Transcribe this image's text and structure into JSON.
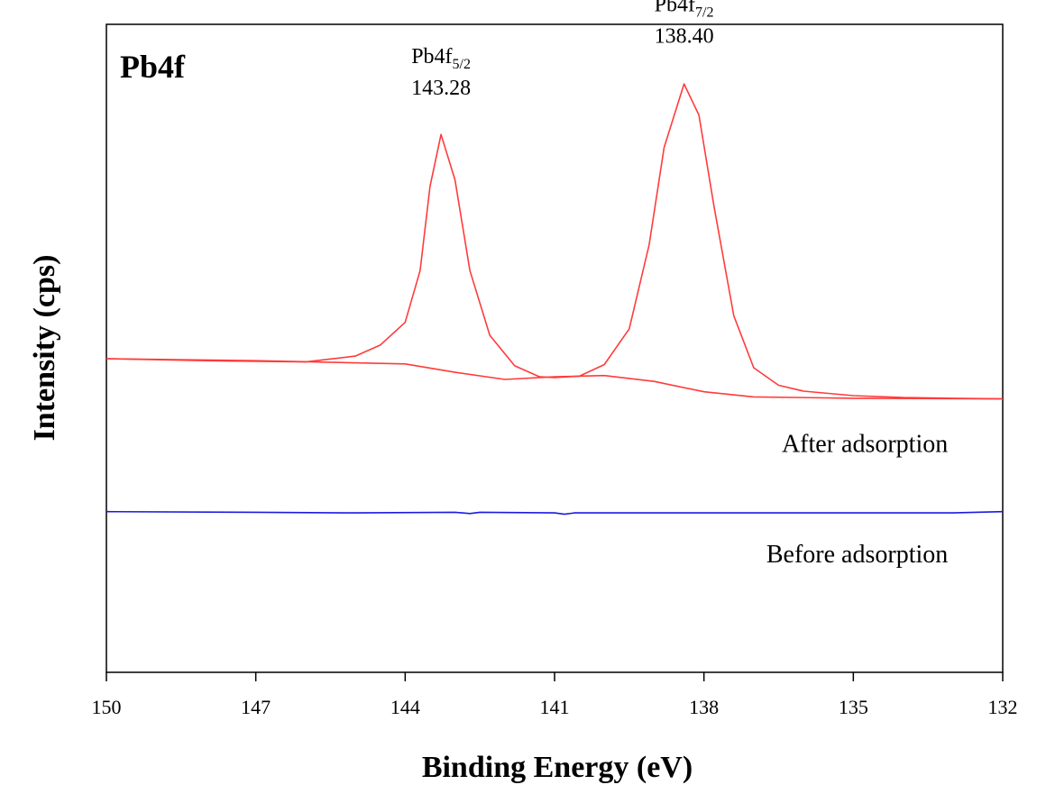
{
  "chart_data": {
    "type": "line",
    "title": "Pb4f",
    "xlabel": "Binding Energy (eV)",
    "ylabel": "Intensity (cps)",
    "xlim": [
      150,
      132
    ],
    "x_reversed": true,
    "ylim": [
      0,
      100
    ],
    "y_ticks_shown": false,
    "grid": false,
    "x_ticks": [
      150,
      147,
      144,
      141,
      138,
      135,
      132
    ],
    "series": [
      {
        "name": "After adsorption",
        "color": "#ff3b3b",
        "points": [
          [
            150,
            48.4
          ],
          [
            148,
            48.1
          ],
          [
            146,
            47.9
          ],
          [
            145,
            48.8
          ],
          [
            144.5,
            50.5
          ],
          [
            144,
            54
          ],
          [
            143.7,
            62
          ],
          [
            143.5,
            75
          ],
          [
            143.28,
            83.0
          ],
          [
            143.0,
            76
          ],
          [
            142.7,
            62
          ],
          [
            142.3,
            52
          ],
          [
            141.8,
            47.3
          ],
          [
            141.3,
            45.6
          ],
          [
            141.0,
            45.5
          ],
          [
            140.5,
            45.7
          ],
          [
            140.0,
            47.5
          ],
          [
            139.5,
            53
          ],
          [
            139.1,
            66
          ],
          [
            138.8,
            81
          ],
          [
            138.4,
            90.8
          ],
          [
            138.1,
            86
          ],
          [
            137.8,
            72
          ],
          [
            137.4,
            55
          ],
          [
            137.0,
            47
          ],
          [
            136.5,
            44.3
          ],
          [
            136.0,
            43.4
          ],
          [
            135.0,
            42.7
          ],
          [
            134.0,
            42.4
          ],
          [
            133.0,
            42.3
          ],
          [
            132,
            42.2
          ]
        ]
      },
      {
        "name": "After adsorption baseline",
        "color": "#ff3b3b",
        "points": [
          [
            150,
            48.4
          ],
          [
            147,
            48.1
          ],
          [
            144,
            47.6
          ],
          [
            143,
            46.3
          ],
          [
            142,
            45.2
          ],
          [
            141,
            45.6
          ],
          [
            140,
            45.8
          ],
          [
            139,
            44.9
          ],
          [
            138,
            43.3
          ],
          [
            137,
            42.5
          ],
          [
            135,
            42.3
          ],
          [
            132,
            42.2
          ]
        ]
      },
      {
        "name": "Before adsorption",
        "color": "#1a1ae0",
        "points": [
          [
            150,
            24.8
          ],
          [
            147,
            24.7
          ],
          [
            145,
            24.6
          ],
          [
            143,
            24.7
          ],
          [
            142.7,
            24.5
          ],
          [
            142.5,
            24.7
          ],
          [
            141,
            24.6
          ],
          [
            140.8,
            24.4
          ],
          [
            140.6,
            24.6
          ],
          [
            138,
            24.6
          ],
          [
            135,
            24.6
          ],
          [
            133,
            24.6
          ],
          [
            132,
            24.8
          ]
        ]
      }
    ],
    "annotations": [
      {
        "main": "Pb4f",
        "sub": "5/2",
        "value": "143.28",
        "x": 143.28,
        "y": 94
      },
      {
        "main": "Pb4f",
        "sub": "7/2",
        "value": "138.40",
        "x": 138.4,
        "y": 102
      }
    ],
    "series_labels": [
      {
        "text": "After adsorption",
        "x": 133.1,
        "y": 34
      },
      {
        "text": "Before adsorption",
        "x": 133.1,
        "y": 17
      }
    ]
  }
}
